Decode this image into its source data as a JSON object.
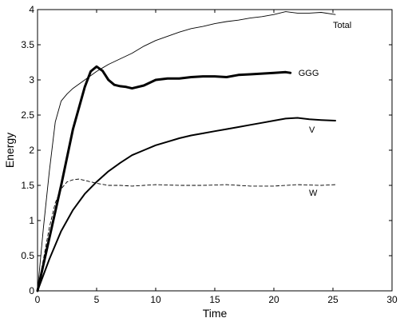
{
  "chart_data": {
    "type": "line",
    "title": "",
    "xlabel": "Time",
    "ylabel": "Energy",
    "xlim": [
      0,
      30
    ],
    "ylim": [
      0,
      4
    ],
    "xticks": [
      "0",
      "5",
      "10",
      "15",
      "20",
      "25",
      "30"
    ],
    "yticks": [
      "0",
      "0.5",
      "1",
      "1.5",
      "2",
      "2.5",
      "3",
      "3.5",
      "4"
    ],
    "grid": false,
    "legend": "none",
    "series": [
      {
        "name": "Total",
        "style": "thin",
        "x": [
          0,
          0.5,
          1,
          1.5,
          2,
          2.5,
          3,
          4,
          5,
          6,
          7,
          8,
          9,
          10,
          11,
          12,
          13,
          14,
          15,
          16,
          17,
          18,
          19,
          20,
          21,
          22,
          23,
          24,
          25.2
        ],
        "y": [
          0,
          0.9,
          1.7,
          2.4,
          2.7,
          2.8,
          2.88,
          3.0,
          3.12,
          3.22,
          3.3,
          3.38,
          3.48,
          3.56,
          3.62,
          3.68,
          3.73,
          3.76,
          3.8,
          3.83,
          3.85,
          3.88,
          3.9,
          3.93,
          3.97,
          3.95,
          3.95,
          3.96,
          3.93
        ]
      },
      {
        "name": "GGG",
        "style": "thick",
        "x": [
          0,
          1,
          2,
          3,
          4,
          4.5,
          5,
          5.5,
          6,
          6.5,
          7,
          7.5,
          8,
          9,
          10,
          11,
          12,
          13,
          14,
          15,
          16,
          17,
          18,
          19,
          20,
          21,
          21.4
        ],
        "y": [
          0,
          0.75,
          1.5,
          2.3,
          2.9,
          3.12,
          3.19,
          3.13,
          3.0,
          2.93,
          2.91,
          2.9,
          2.88,
          2.92,
          3.0,
          3.02,
          3.02,
          3.04,
          3.05,
          3.05,
          3.04,
          3.07,
          3.08,
          3.09,
          3.1,
          3.11,
          3.1
        ]
      },
      {
        "name": "V",
        "style": "medium",
        "x": [
          0,
          1,
          2,
          3,
          4,
          5,
          6,
          7,
          8,
          9,
          10,
          11,
          12,
          13,
          14,
          15,
          16,
          17,
          18,
          19,
          20,
          21,
          22,
          23,
          24,
          25.2
        ],
        "y": [
          0,
          0.45,
          0.85,
          1.15,
          1.38,
          1.55,
          1.7,
          1.82,
          1.93,
          2.0,
          2.07,
          2.12,
          2.17,
          2.21,
          2.24,
          2.27,
          2.3,
          2.33,
          2.36,
          2.39,
          2.42,
          2.45,
          2.46,
          2.44,
          2.43,
          2.42
        ]
      },
      {
        "name": "W",
        "style": "dashed",
        "x": [
          0,
          0.5,
          1,
          1.5,
          2,
          2.5,
          3,
          3.5,
          4,
          5,
          6,
          7,
          8,
          9,
          10,
          12,
          14,
          16,
          18,
          20,
          22,
          24,
          25.2
        ],
        "y": [
          0,
          0.45,
          0.9,
          1.25,
          1.45,
          1.55,
          1.58,
          1.59,
          1.57,
          1.53,
          1.5,
          1.5,
          1.49,
          1.5,
          1.51,
          1.5,
          1.5,
          1.51,
          1.49,
          1.49,
          1.51,
          1.5,
          1.51
        ]
      }
    ]
  }
}
